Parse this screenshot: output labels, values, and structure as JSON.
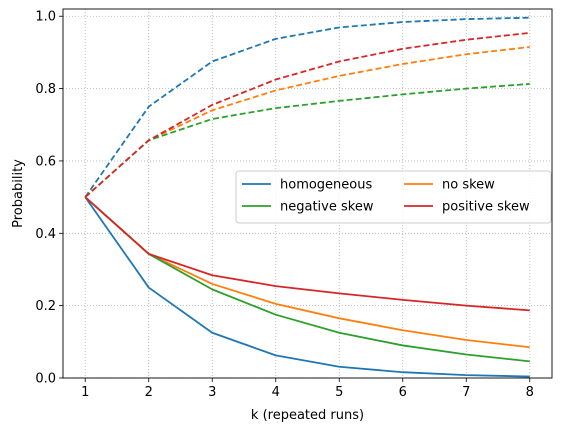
{
  "chart_data": {
    "type": "line",
    "title": "",
    "xlabel": "k (repeated runs)",
    "ylabel": "Probability",
    "x": [
      1,
      2,
      3,
      4,
      5,
      6,
      7,
      8
    ],
    "xlim": [
      0.65,
      8.35
    ],
    "ylim": [
      0.0,
      1.02
    ],
    "xticks": [
      "1",
      "2",
      "3",
      "4",
      "5",
      "6",
      "7",
      "8"
    ],
    "yticks": [
      "0.0",
      "0.2",
      "0.4",
      "0.6",
      "0.8",
      "1.0"
    ],
    "grid": true,
    "legend": {
      "placement": "center-right",
      "columns": 2
    },
    "series": [
      {
        "name": "homogeneous",
        "color": "#1f77b4",
        "style": "solid",
        "values": [
          0.5,
          0.25,
          0.125,
          0.0625,
          0.031,
          0.016,
          0.008,
          0.004
        ]
      },
      {
        "name": "no skew",
        "color": "#ff7f0e",
        "style": "solid",
        "values": [
          0.5,
          0.343,
          0.26,
          0.205,
          0.165,
          0.132,
          0.105,
          0.085
        ]
      },
      {
        "name": "negative skew",
        "color": "#2ca02c",
        "style": "solid",
        "values": [
          0.5,
          0.343,
          0.245,
          0.175,
          0.125,
          0.09,
          0.065,
          0.046
        ]
      },
      {
        "name": "positive skew",
        "color": "#d62728",
        "style": "solid",
        "values": [
          0.5,
          0.343,
          0.284,
          0.254,
          0.234,
          0.216,
          0.2,
          0.187
        ]
      },
      {
        "name": "",
        "legend": false,
        "color": "#1f77b4",
        "style": "dashed",
        "values": [
          0.5,
          0.75,
          0.875,
          0.9375,
          0.969,
          0.984,
          0.992,
          0.996
        ]
      },
      {
        "name": "",
        "legend": false,
        "color": "#ff7f0e",
        "style": "dashed",
        "values": [
          0.5,
          0.657,
          0.74,
          0.795,
          0.835,
          0.868,
          0.895,
          0.915
        ]
      },
      {
        "name": "",
        "legend": false,
        "color": "#2ca02c",
        "style": "dashed",
        "values": [
          0.5,
          0.657,
          0.716,
          0.746,
          0.766,
          0.784,
          0.8,
          0.813
        ]
      },
      {
        "name": "",
        "legend": false,
        "color": "#d62728",
        "style": "dashed",
        "values": [
          0.5,
          0.657,
          0.755,
          0.825,
          0.875,
          0.91,
          0.935,
          0.954
        ]
      }
    ]
  }
}
